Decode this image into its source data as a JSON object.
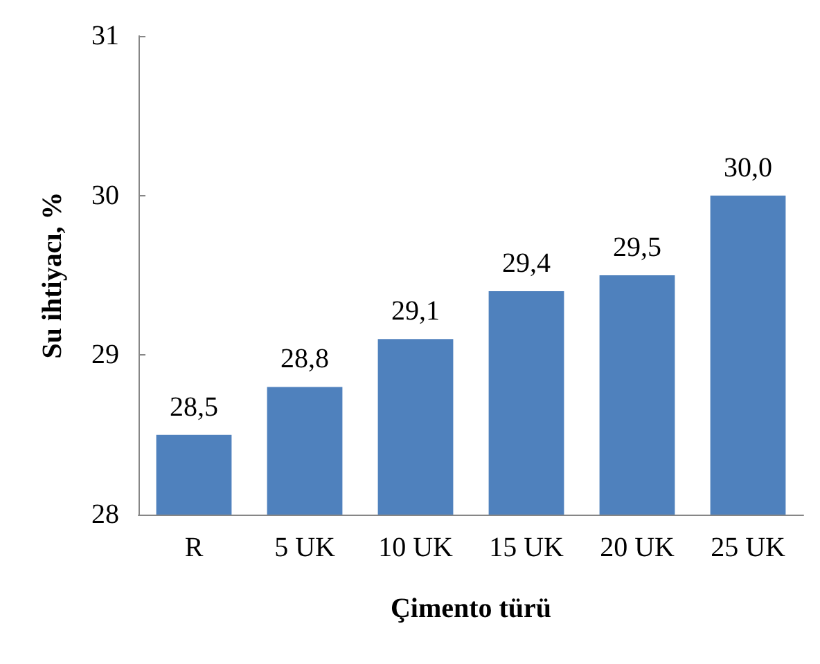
{
  "chart_data": {
    "type": "bar",
    "xlabel": "Çimento türü",
    "ylabel": "Su ihtiyacı, %",
    "categories": [
      "R",
      "5 UK",
      "10 UK",
      "15 UK",
      "20 UK",
      "25 UK"
    ],
    "values": [
      28.5,
      28.8,
      29.1,
      29.4,
      29.5,
      30.0
    ],
    "value_labels": [
      "28,5",
      "28,8",
      "29,1",
      "29,4",
      "29,5",
      "30,0"
    ],
    "color": "#4f81bd",
    "ylim": [
      28,
      31
    ],
    "yticks": [
      28,
      29,
      30,
      31
    ],
    "grid": false
  }
}
